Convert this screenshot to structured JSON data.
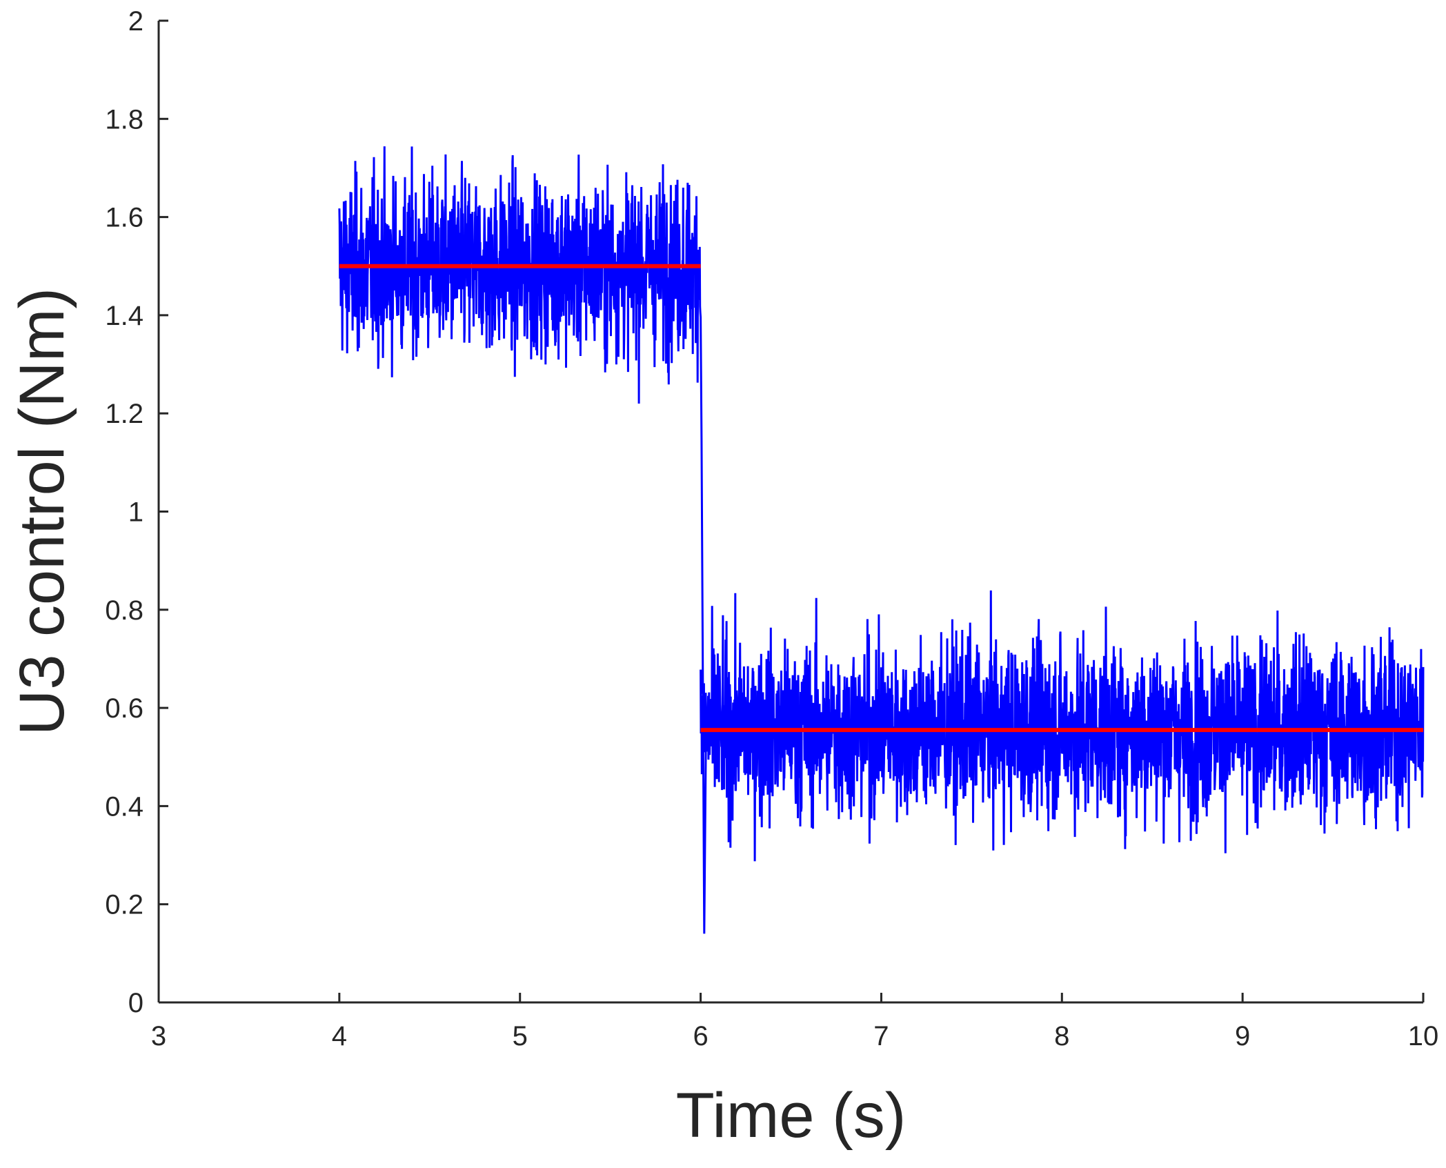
{
  "chart_data": {
    "type": "line",
    "title": "",
    "xlabel": "Time (s)",
    "ylabel": "U3 control (Nm)",
    "xlim": [
      3,
      10
    ],
    "ylim": [
      0,
      2
    ],
    "xticks": [
      "3",
      "4",
      "5",
      "6",
      "7",
      "8",
      "9",
      "10"
    ],
    "yticks": [
      "0",
      "0.2",
      "0.4",
      "0.6",
      "0.8",
      "1",
      "1.2",
      "1.4",
      "1.6",
      "1.8",
      "2"
    ],
    "grid": false,
    "legend": "none",
    "series": [
      {
        "role": "noisy control signal",
        "color": "#0000ff",
        "segments": [
          {
            "x_start": 4,
            "x_end": 6,
            "mean": 1.5,
            "typical_range": [
              1.25,
              1.75
            ],
            "max": 1.87,
            "min": 1.05
          },
          {
            "x_start": 6,
            "x_end": 10,
            "mean": 0.555,
            "typical_range": [
              0.3,
              0.8
            ],
            "max": 1.02,
            "min": 0.07
          }
        ],
        "transition": {
          "x": 6,
          "from": 1.5,
          "to": 0.56,
          "undershoot": 0.14
        }
      },
      {
        "role": "mean control level",
        "color": "#ff0000",
        "segments": [
          {
            "x_start": 4,
            "x_end": 6,
            "value": 1.5
          },
          {
            "x_start": 6,
            "x_end": 10,
            "value": 0.555
          }
        ]
      }
    ]
  }
}
